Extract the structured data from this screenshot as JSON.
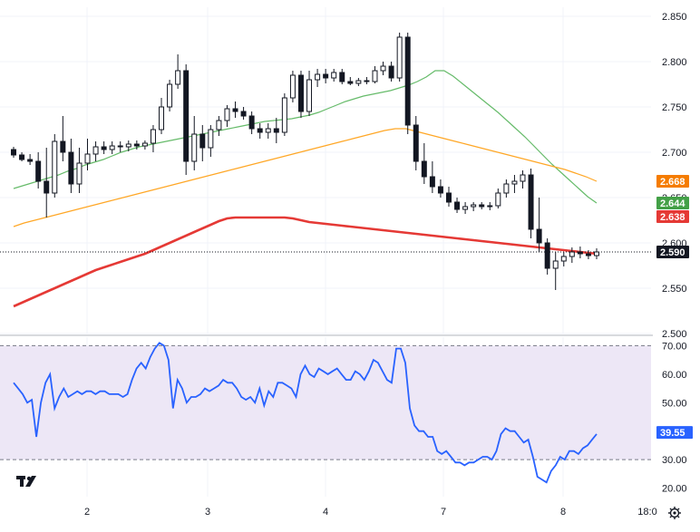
{
  "chart_data": [
    {
      "type": "candlestick",
      "title": "",
      "ylim": [
        2.5,
        2.86
      ],
      "y_ticks": [
        "2.850",
        "2.800",
        "2.750",
        "2.700",
        "2.650",
        "2.600",
        "2.550",
        "2.500"
      ],
      "y_tick_values": [
        2.85,
        2.8,
        2.75,
        2.7,
        2.65,
        2.6,
        2.55,
        2.5
      ],
      "x_ticks": [
        "2",
        "3",
        "4",
        "7",
        "8",
        "18:0"
      ],
      "x_tick_positions": [
        3.0,
        10.3,
        17.6,
        24.9,
        32.2,
        37.0
      ],
      "grid": true,
      "ohlc": [
        [
          2.703,
          2.706,
          2.694,
          2.697
        ],
        [
          2.697,
          2.7,
          2.69,
          2.692
        ],
        [
          2.692,
          2.698,
          2.686,
          2.69
        ],
        [
          2.69,
          2.7,
          2.66,
          2.668
        ],
        [
          2.668,
          2.705,
          2.628,
          2.655
        ],
        [
          2.655,
          2.72,
          2.65,
          2.712
        ],
        [
          2.712,
          2.74,
          2.69,
          2.7
        ],
        [
          2.7,
          2.715,
          2.655,
          2.665
        ],
        [
          2.665,
          2.705,
          2.655,
          2.688
        ],
        [
          2.688,
          2.715,
          2.68,
          2.698
        ],
        [
          2.698,
          2.712,
          2.69,
          2.706
        ],
        [
          2.706,
          2.712,
          2.698,
          2.703
        ],
        [
          2.703,
          2.712,
          2.698,
          2.707
        ],
        [
          2.707,
          2.712,
          2.7,
          2.706
        ],
        [
          2.706,
          2.713,
          2.701,
          2.709
        ],
        [
          2.709,
          2.713,
          2.703,
          2.707
        ],
        [
          2.707,
          2.713,
          2.703,
          2.71
        ],
        [
          2.71,
          2.73,
          2.7,
          2.725
        ],
        [
          2.725,
          2.76,
          2.72,
          2.75
        ],
        [
          2.75,
          2.78,
          2.745,
          2.775
        ],
        [
          2.775,
          2.808,
          2.77,
          2.79
        ],
        [
          2.79,
          2.797,
          2.675,
          2.69
        ],
        [
          2.69,
          2.74,
          2.68,
          2.72
        ],
        [
          2.72,
          2.73,
          2.69,
          2.705
        ],
        [
          2.705,
          2.73,
          2.695,
          2.725
        ],
        [
          2.725,
          2.74,
          2.718,
          2.735
        ],
        [
          2.735,
          2.752,
          2.728,
          2.748
        ],
        [
          2.748,
          2.756,
          2.738,
          2.745
        ],
        [
          2.745,
          2.75,
          2.736,
          2.74
        ],
        [
          2.74,
          2.745,
          2.72,
          2.726
        ],
        [
          2.726,
          2.732,
          2.715,
          2.722
        ],
        [
          2.722,
          2.732,
          2.715,
          2.726
        ],
        [
          2.726,
          2.738,
          2.71,
          2.722
        ],
        [
          2.722,
          2.765,
          2.718,
          2.76
        ],
        [
          2.76,
          2.79,
          2.755,
          2.785
        ],
        [
          2.785,
          2.79,
          2.738,
          2.745
        ],
        [
          2.745,
          2.79,
          2.74,
          2.78
        ],
        [
          2.78,
          2.792,
          2.772,
          2.786
        ],
        [
          2.786,
          2.792,
          2.776,
          2.782
        ],
        [
          2.782,
          2.792,
          2.778,
          2.788
        ],
        [
          2.788,
          2.792,
          2.775,
          2.778
        ],
        [
          2.778,
          2.783,
          2.774,
          2.776
        ],
        [
          2.776,
          2.782,
          2.773,
          2.779
        ],
        [
          2.779,
          2.783,
          2.775,
          2.778
        ],
        [
          2.778,
          2.795,
          2.776,
          2.79
        ],
        [
          2.79,
          2.8,
          2.785,
          2.795
        ],
        [
          2.795,
          2.8,
          2.778,
          2.782
        ],
        [
          2.782,
          2.832,
          2.778,
          2.827
        ],
        [
          2.827,
          2.832,
          2.72,
          2.73
        ],
        [
          2.73,
          2.74,
          2.68,
          2.69
        ],
        [
          2.69,
          2.71,
          2.665,
          2.673
        ],
        [
          2.673,
          2.69,
          2.655,
          2.662
        ],
        [
          2.662,
          2.67,
          2.65,
          2.655
        ],
        [
          2.655,
          2.662,
          2.64,
          2.645
        ],
        [
          2.645,
          2.65,
          2.633,
          2.637
        ],
        [
          2.637,
          2.645,
          2.632,
          2.64
        ],
        [
          2.64,
          2.645,
          2.635,
          2.642
        ],
        [
          2.642,
          2.645,
          2.637,
          2.64
        ],
        [
          2.64,
          2.645,
          2.636,
          2.641
        ],
        [
          2.641,
          2.66,
          2.638,
          2.655
        ],
        [
          2.655,
          2.67,
          2.65,
          2.665
        ],
        [
          2.665,
          2.675,
          2.655,
          2.668
        ],
        [
          2.668,
          2.68,
          2.66,
          2.675
        ],
        [
          2.675,
          2.682,
          2.605,
          2.615
        ],
        [
          2.615,
          2.65,
          2.59,
          2.6
        ],
        [
          2.6,
          2.605,
          2.565,
          2.572
        ],
        [
          2.572,
          2.59,
          2.548,
          2.58
        ],
        [
          2.58,
          2.59,
          2.574,
          2.585
        ],
        [
          2.585,
          2.595,
          2.578,
          2.59
        ],
        [
          2.59,
          2.596,
          2.583,
          2.588
        ],
        [
          2.588,
          2.592,
          2.582,
          2.586
        ],
        [
          2.586,
          2.594,
          2.582,
          2.59
        ]
      ],
      "series": [
        {
          "values": [
            2.66,
            2.663,
            2.666,
            2.669,
            2.672,
            2.675,
            2.679,
            2.682,
            2.686,
            2.689,
            2.692,
            2.696,
            2.7,
            2.703,
            2.706,
            2.708,
            2.71,
            2.712,
            2.714,
            2.716,
            2.718,
            2.72,
            2.722,
            2.724,
            2.726,
            2.728,
            2.73,
            2.732,
            2.734,
            2.735,
            2.736,
            2.737,
            2.739,
            2.741,
            2.744,
            2.748,
            2.752,
            2.756,
            2.759,
            2.762,
            2.764,
            2.766,
            2.768,
            2.771,
            2.774,
            2.778,
            2.783,
            2.79,
            2.79,
            2.784,
            2.776,
            2.768,
            2.76,
            2.752,
            2.744,
            2.735,
            2.726,
            2.717,
            2.707,
            2.697,
            2.687,
            2.678,
            2.669,
            2.66,
            2.651,
            2.644
          ]
        },
        {
          "values": [
            2.618,
            2.622,
            2.625,
            2.628,
            2.631,
            2.634,
            2.637,
            2.64,
            2.643,
            2.646,
            2.649,
            2.652,
            2.655,
            2.658,
            2.661,
            2.664,
            2.667,
            2.67,
            2.673,
            2.676,
            2.679,
            2.682,
            2.685,
            2.688,
            2.691,
            2.694,
            2.697,
            2.7,
            2.703,
            2.706,
            2.709,
            2.712,
            2.715,
            2.718,
            2.721,
            2.724,
            2.726,
            2.726,
            2.723,
            2.72,
            2.717,
            2.714,
            2.711,
            2.708,
            2.705,
            2.702,
            2.699,
            2.696,
            2.693,
            2.69,
            2.687,
            2.684,
            2.681,
            2.677,
            2.673,
            2.668
          ]
        },
        {
          "values": [
            2.53,
            2.534,
            2.538,
            2.542,
            2.546,
            2.55,
            2.554,
            2.558,
            2.562,
            2.566,
            2.57,
            2.573,
            2.576,
            2.579,
            2.582,
            2.585,
            2.588,
            2.592,
            2.596,
            2.6,
            2.604,
            2.608,
            2.612,
            2.616,
            2.62,
            2.624,
            2.627,
            2.628,
            2.628,
            2.628,
            2.628,
            2.628,
            2.628,
            2.628,
            2.627,
            2.625,
            2.623,
            2.622,
            2.621,
            2.62,
            2.619,
            2.618,
            2.617,
            2.616,
            2.615,
            2.614,
            2.613,
            2.612,
            2.611,
            2.61,
            2.609,
            2.608,
            2.607,
            2.606,
            2.605,
            2.604,
            2.603,
            2.602,
            2.601,
            2.6,
            2.599,
            2.598,
            2.597,
            2.596,
            2.595,
            2.594,
            2.593,
            2.592,
            2.591,
            2.59,
            2.589,
            2.588
          ]
        }
      ],
      "price_tags": [
        {
          "label": "2.668",
          "value": 2.668,
          "color": "#f57c00"
        },
        {
          "label": "2.644",
          "value": 2.644,
          "color": "#43a047"
        },
        {
          "label": "2.638",
          "value": 2.638,
          "color": "#e53935"
        },
        {
          "label": "2.590",
          "value": 2.59,
          "color": "#131722"
        }
      ],
      "colors": {
        "ma_fast": "#66bb6a",
        "ma_mid": "#ffa726",
        "ma_slow": "#e53935",
        "candle": "#131722"
      }
    },
    {
      "type": "line",
      "title": "",
      "ylim": [
        17,
        73
      ],
      "y_ticks": [
        "70.00",
        "60.00",
        "50.00",
        "40.00",
        "30.00",
        "20.00"
      ],
      "y_tick_values": [
        70,
        60,
        50,
        40,
        30,
        20
      ],
      "band": [
        30,
        70
      ],
      "series": [
        {
          "values": [
            57,
            55,
            53,
            50,
            51,
            38,
            50,
            57,
            60,
            48,
            52,
            55,
            52,
            53,
            54,
            53,
            54,
            54,
            53,
            54,
            54,
            53,
            53,
            53,
            52,
            53,
            58,
            62,
            64,
            62,
            66,
            69,
            71,
            70,
            65,
            48,
            58,
            55,
            50,
            52,
            52,
            53,
            55,
            54,
            55,
            56,
            58,
            57,
            57,
            55,
            52,
            51,
            52,
            50,
            55,
            49,
            54,
            52,
            57,
            57,
            56,
            55,
            52,
            60,
            63,
            60,
            59,
            62,
            61,
            60,
            61,
            62,
            60,
            58,
            58,
            61,
            60,
            58,
            61,
            65,
            64,
            61,
            58,
            57,
            69,
            69,
            64,
            48,
            42,
            40,
            40,
            38,
            38,
            33,
            32,
            33,
            31,
            29,
            29,
            28,
            29,
            29,
            30,
            31,
            31,
            30,
            33,
            39,
            41,
            40,
            40,
            38,
            36,
            37,
            31,
            24,
            23,
            22,
            26,
            28,
            31,
            30,
            33,
            33,
            32,
            34,
            35,
            37,
            39
          ]
        }
      ],
      "last_label": "39.55",
      "colors": {
        "line": "#2962ff",
        "band_fill": "#ede7f6",
        "last_tag": "#2962ff"
      }
    }
  ],
  "branding": {
    "logo_icon": "tradingview-logo-icon"
  },
  "toolbar": {
    "settings_icon": "gear-icon"
  }
}
